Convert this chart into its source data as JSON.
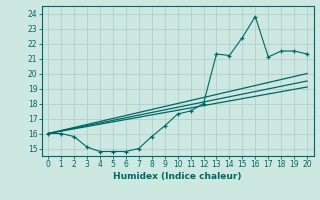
{
  "xlabel": "Humidex (Indice chaleur)",
  "bg_color": "#cce8e0",
  "grid_color": "#aacccc",
  "line_color": "#006666",
  "xlim": [
    -0.5,
    20.5
  ],
  "ylim": [
    14.5,
    24.5
  ],
  "xticks": [
    0,
    1,
    2,
    3,
    4,
    5,
    6,
    7,
    8,
    9,
    10,
    11,
    12,
    13,
    14,
    15,
    16,
    17,
    18,
    19,
    20
  ],
  "yticks": [
    15,
    16,
    17,
    18,
    19,
    20,
    21,
    22,
    23,
    24
  ],
  "trend1_x": [
    0,
    20
  ],
  "trend1_y": [
    16.0,
    20.0
  ],
  "trend2_x": [
    0,
    20
  ],
  "trend2_y": [
    16.0,
    19.5
  ],
  "trend3_x": [
    0,
    20
  ],
  "trend3_y": [
    16.0,
    19.1
  ],
  "data_x": [
    0,
    1,
    2,
    3,
    4,
    5,
    6,
    7,
    8,
    9,
    10,
    11,
    12,
    13,
    14,
    15,
    16,
    17,
    18,
    19,
    20
  ],
  "data_y": [
    16.0,
    16.0,
    15.8,
    15.1,
    14.8,
    14.8,
    14.8,
    15.0,
    15.8,
    16.5,
    17.3,
    17.5,
    18.0,
    21.3,
    21.2,
    22.4,
    23.8,
    21.1,
    21.5,
    21.5,
    21.3
  ]
}
